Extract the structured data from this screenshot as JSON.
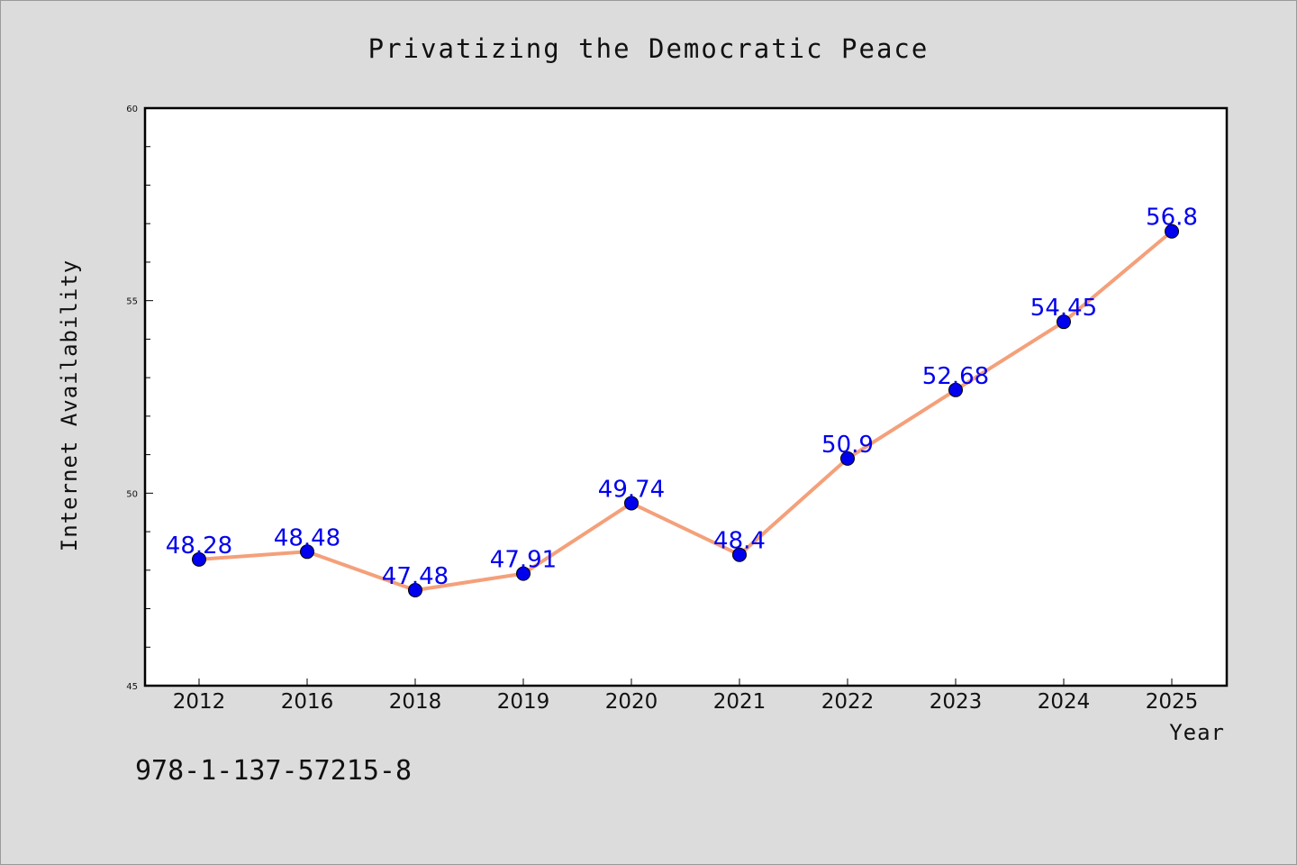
{
  "chart_data": {
    "type": "line",
    "title": "Privatizing the Democratic Peace",
    "xlabel": "Year",
    "ylabel": "Internet Availability",
    "categories": [
      "2012",
      "2016",
      "2018",
      "2019",
      "2020",
      "2021",
      "2022",
      "2023",
      "2024",
      "2025"
    ],
    "series": [
      {
        "values": [
          48.28,
          48.48,
          47.48,
          47.91,
          49.74,
          48.4,
          50.9,
          52.68,
          54.45,
          56.8
        ],
        "labels": [
          "48.28",
          "48.48",
          "47.48",
          "47.91",
          "49.74",
          "48.4",
          "50.9",
          "52.68",
          "54.45",
          "56.8"
        ]
      }
    ],
    "ylim": [
      45,
      60
    ],
    "yticks": [
      "45",
      "50",
      "55",
      "60"
    ],
    "grid": false,
    "legend": "none",
    "colors": {
      "line": "#f4a07a",
      "marker": "#0000ee",
      "label": "#0000ee",
      "background": "#dcdcdc",
      "plot_background": "#ffffff"
    }
  },
  "footer": {
    "isbn": "978-1-137-57215-8"
  }
}
